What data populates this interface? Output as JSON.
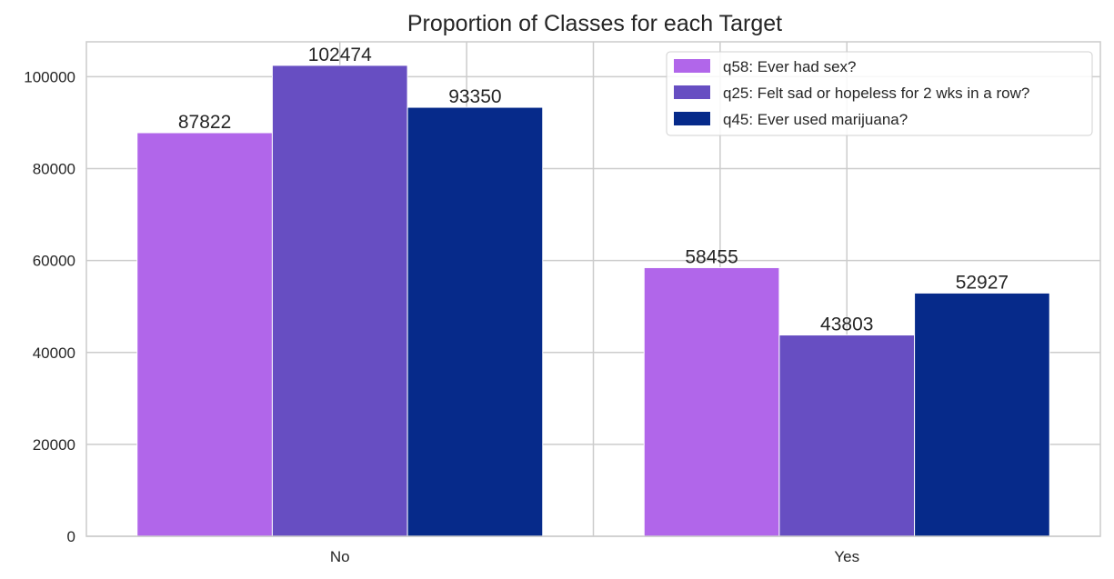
{
  "chart_data": {
    "type": "bar",
    "title": "Proportion of Classes for each Target",
    "xlabel": "",
    "ylabel": "",
    "categories": [
      "No",
      "Yes"
    ],
    "series": [
      {
        "name": "q58: Ever had sex?",
        "values": [
          87822,
          58455
        ],
        "color": "#b166ea"
      },
      {
        "name": "q25: Felt sad or hopeless for 2 wks in a row?",
        "values": [
          102474,
          43803
        ],
        "color": "#674ec2"
      },
      {
        "name": "q45: Ever used marijuana?",
        "values": [
          93350,
          52927
        ],
        "color": "#062a8a"
      }
    ],
    "ylim": [
      0,
      107600
    ],
    "yticks": [
      0,
      20000,
      40000,
      60000,
      80000,
      100000
    ],
    "grid": true,
    "legend": "top-right"
  }
}
